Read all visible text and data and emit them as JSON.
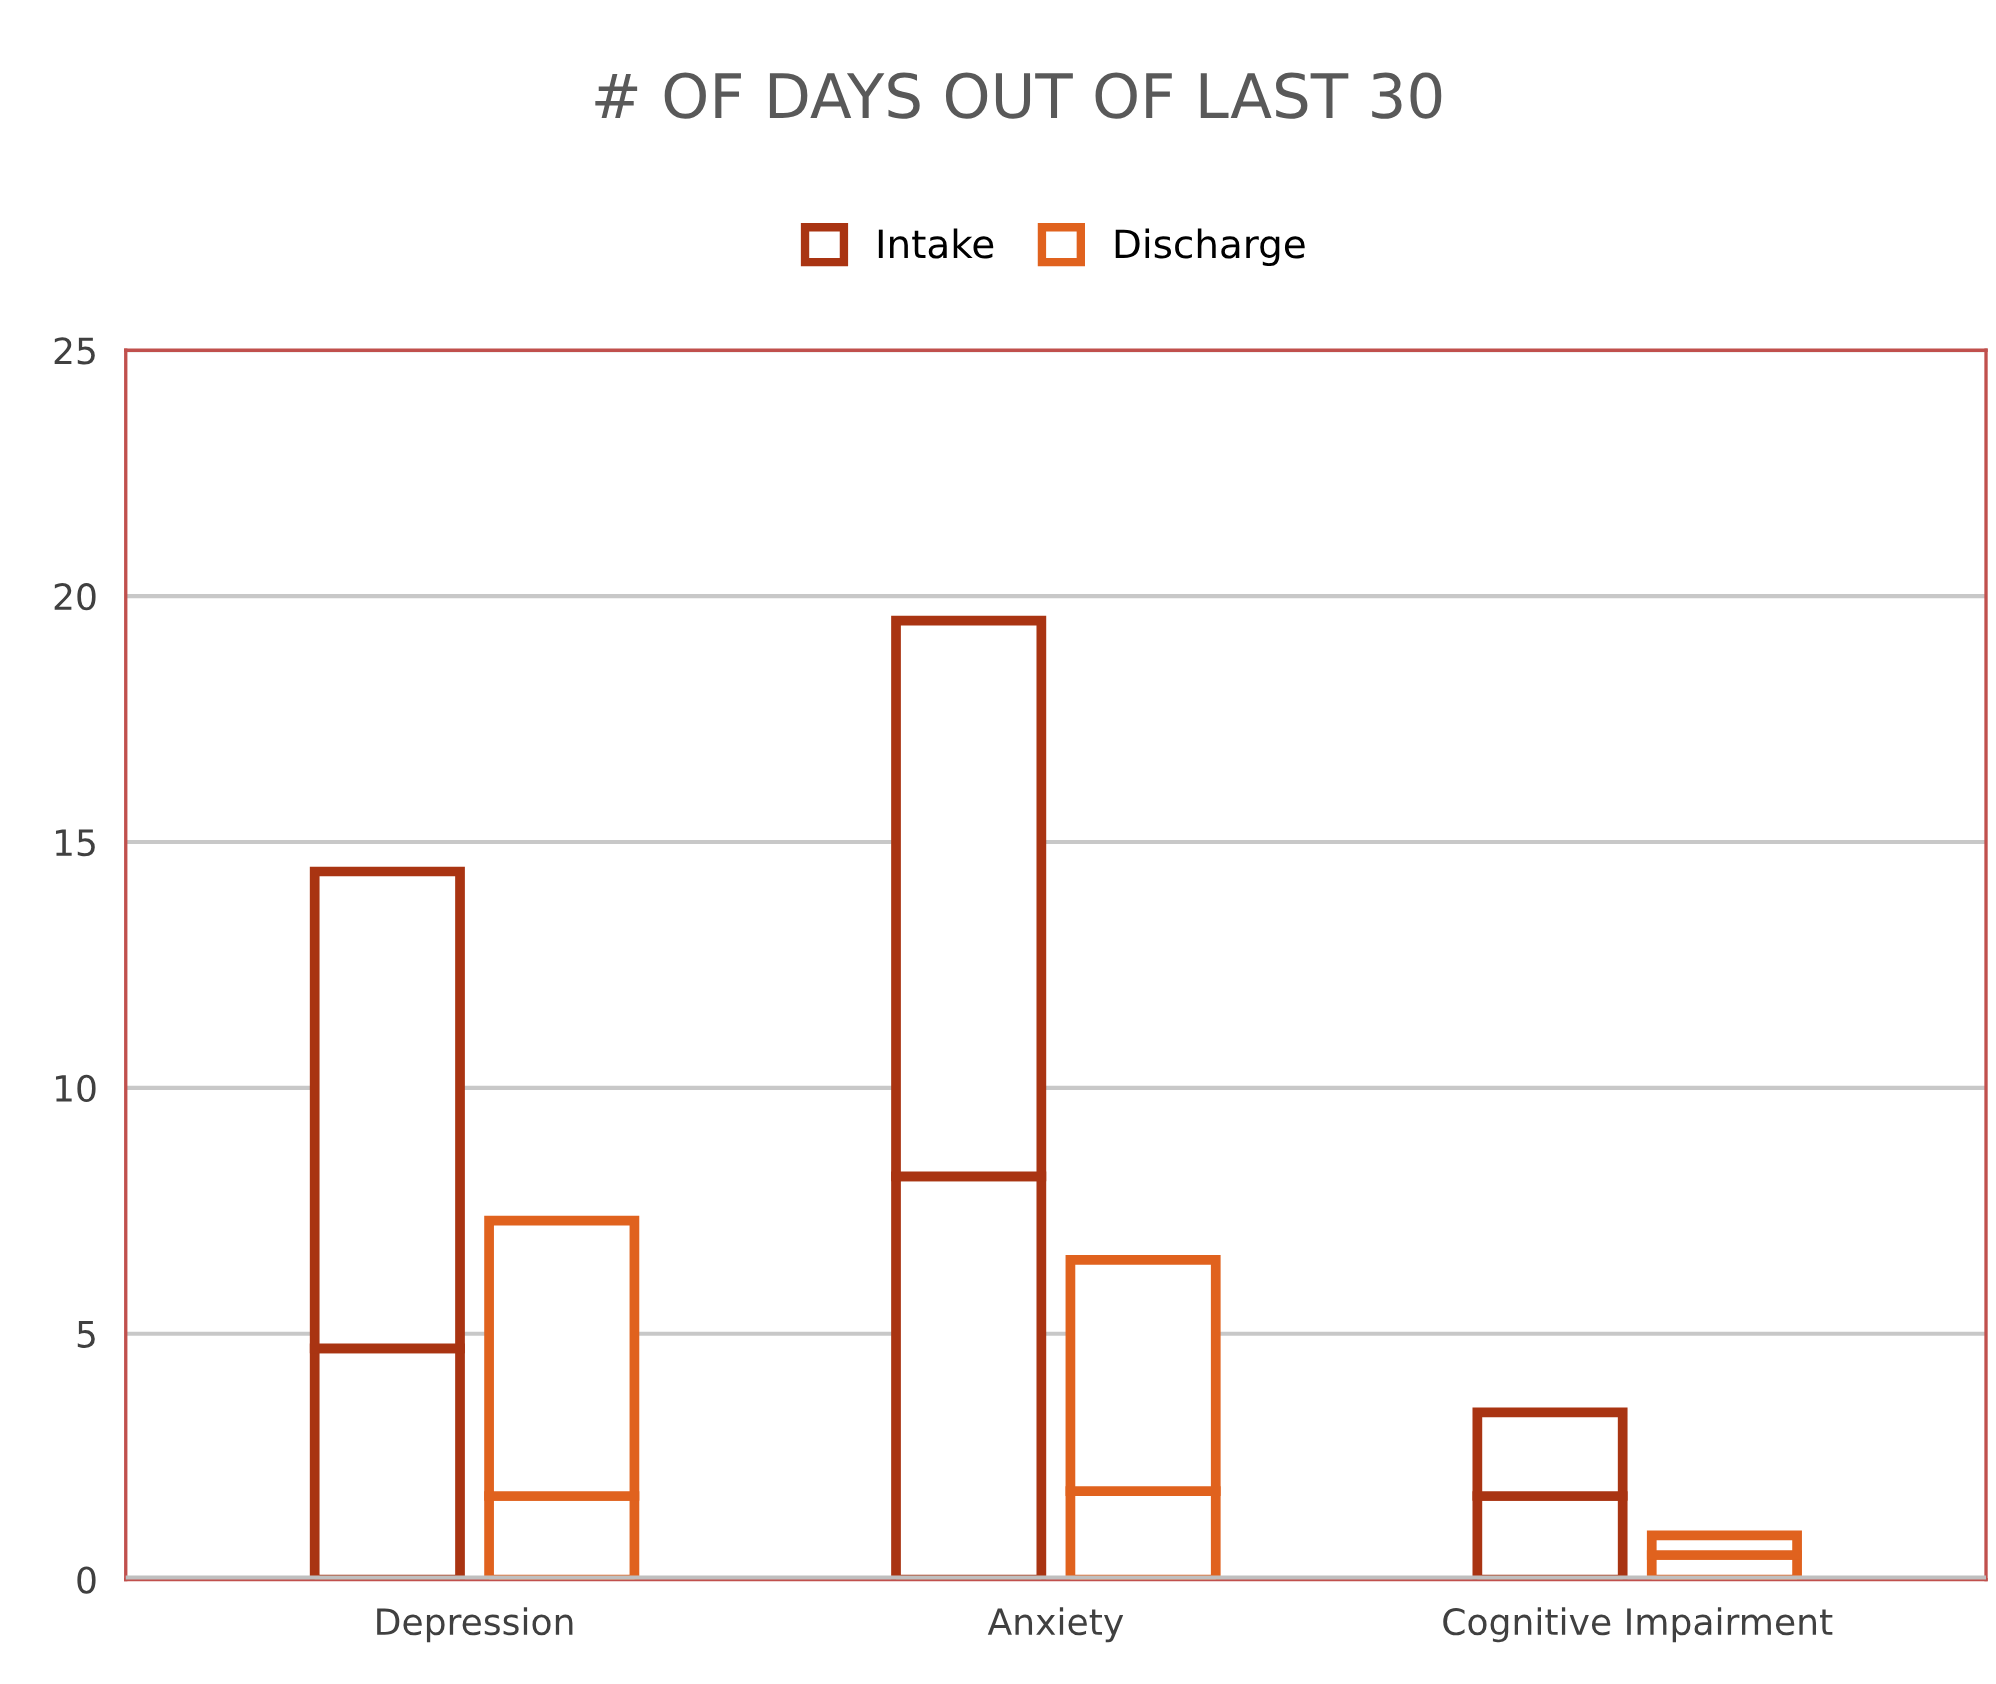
{
  "chart_data": {
    "type": "bar",
    "title": "# OF DAYS OUT OF LAST 30",
    "categories": [
      "Depression",
      "Anxiety",
      "Cognitive Impairment"
    ],
    "series": [
      {
        "name": "Intake",
        "color": "#a93412",
        "values": [
          4.7,
          8.2,
          1.7
        ],
        "base": [
          0,
          0,
          0
        ]
      },
      {
        "color": "#a93412",
        "values": [
          9.7,
          11.3,
          1.7
        ],
        "base": [
          4.7,
          8.2,
          1.7
        ]
      },
      {
        "name": "Discharge",
        "color": "#e0621e",
        "values": [
          1.7,
          1.8,
          0.5
        ],
        "base": [
          0,
          0,
          0
        ]
      },
      {
        "color": "#e0621e",
        "values": [
          5.6,
          4.7,
          0.4
        ],
        "base": [
          1.7,
          1.8,
          0.5
        ]
      }
    ],
    "ylim": [
      0,
      25
    ],
    "yticks": [
      0,
      5,
      10,
      15,
      20,
      25
    ],
    "grid": "y",
    "legend": "top"
  }
}
